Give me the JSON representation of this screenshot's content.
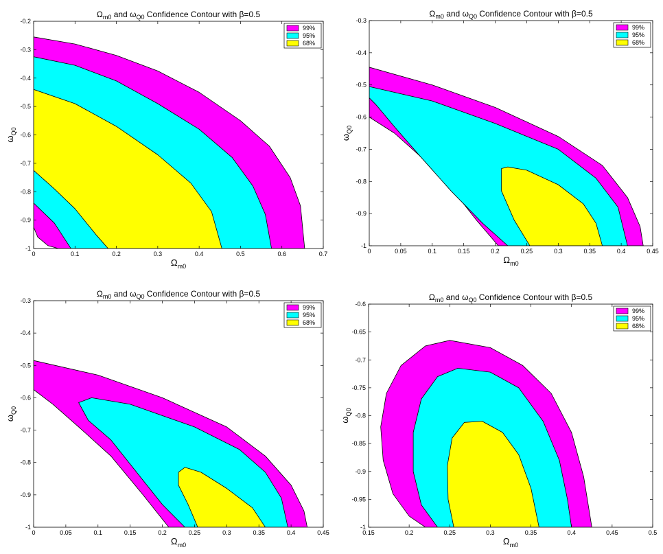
{
  "chart_data": [
    {
      "type": "contour",
      "title": "Ω_m0 and ω_Q0 Confidence Contour with β=0.5",
      "title_parts": {
        "a": "Ω",
        "a_sub": "m0",
        "b": " and ω",
        "b_sub": "Q0",
        "c": " Confidence Contour with β=0.5"
      },
      "xlabel": {
        "main": "Ω",
        "sub": "m0"
      },
      "ylabel": {
        "main": "ω",
        "sub": "Q0"
      },
      "xlim": [
        0,
        0.7
      ],
      "ylim": [
        -1,
        -0.2
      ],
      "xticks": [
        "0",
        "0.1",
        "0.2",
        "0.3",
        "0.4",
        "0.5",
        "0.6",
        "0.7"
      ],
      "yticks": [
        "-1",
        "-0.9",
        "-0.8",
        "-0.7",
        "-0.6",
        "-0.5",
        "-0.4",
        "-0.3",
        "-0.2"
      ],
      "legend": {
        "position": "top-right",
        "entries": [
          {
            "label": "99%",
            "color": "#ff00ff"
          },
          {
            "label": "95%",
            "color": "#00ffff"
          },
          {
            "label": "68%",
            "color": "#ffff00"
          }
        ]
      },
      "regions": [
        {
          "level": "99%",
          "color": "#ff00ff",
          "boundary": [
            [
              0,
              -0.255
            ],
            [
              0.1,
              -0.28
            ],
            [
              0.2,
              -0.32
            ],
            [
              0.3,
              -0.375
            ],
            [
              0.4,
              -0.45
            ],
            [
              0.5,
              -0.55
            ],
            [
              0.57,
              -0.64
            ],
            [
              0.62,
              -0.75
            ],
            [
              0.645,
              -0.85
            ],
            [
              0.655,
              -1
            ],
            [
              0,
              -1
            ]
          ]
        },
        {
          "level": "95%",
          "color": "#00ffff",
          "boundary": [
            [
              0,
              -0.325
            ],
            [
              0.1,
              -0.355
            ],
            [
              0.2,
              -0.41
            ],
            [
              0.3,
              -0.49
            ],
            [
              0.4,
              -0.58
            ],
            [
              0.48,
              -0.68
            ],
            [
              0.53,
              -0.78
            ],
            [
              0.56,
              -0.88
            ],
            [
              0.575,
              -1
            ],
            [
              0,
              -1
            ]
          ]
        },
        {
          "level": "68%",
          "color": "#ffff00",
          "boundary": [
            [
              0,
              -0.44
            ],
            [
              0.1,
              -0.49
            ],
            [
              0.2,
              -0.57
            ],
            [
              0.3,
              -0.67
            ],
            [
              0.38,
              -0.77
            ],
            [
              0.43,
              -0.87
            ],
            [
              0.455,
              -1
            ],
            [
              0,
              -1
            ]
          ]
        },
        {
          "level": "95%",
          "color": "#00ffff",
          "boundary": [
            [
              0,
              -0.725
            ],
            [
              0.05,
              -0.79
            ],
            [
              0.1,
              -0.86
            ],
            [
              0.15,
              -0.95
            ],
            [
              0.18,
              -1
            ],
            [
              0,
              -1
            ]
          ]
        },
        {
          "level": "99%",
          "color": "#ff00ff",
          "boundary": [
            [
              0,
              -0.84
            ],
            [
              0.05,
              -0.91
            ],
            [
              0.09,
              -1
            ],
            [
              0,
              -1
            ]
          ]
        },
        {
          "level": "",
          "color": "#ffffff",
          "boundary": [
            [
              0,
              -0.925
            ],
            [
              0.01,
              -0.96
            ],
            [
              0.035,
              -0.99
            ],
            [
              0.06,
              -1
            ],
            [
              0,
              -1
            ]
          ]
        }
      ]
    },
    {
      "type": "contour",
      "title": "Ω_m0 and ω_Q0 Confidence Contour with β=0.5",
      "title_parts": {
        "a": "Ω",
        "a_sub": "m0",
        "b": " and ω",
        "b_sub": "Q0",
        "c": " Confidence Contour with β=0.5"
      },
      "xlabel": {
        "main": "Ω",
        "sub": "m0"
      },
      "ylabel": {
        "main": "ω",
        "sub": "Q0"
      },
      "xlim": [
        0,
        0.45
      ],
      "ylim": [
        -1,
        -0.3
      ],
      "xticks": [
        "0",
        "0.05",
        "0.1",
        "0.15",
        "0.2",
        "0.25",
        "0.3",
        "0.35",
        "0.4",
        "0.45"
      ],
      "yticks": [
        "-1",
        "-0.9",
        "-0.8",
        "-0.7",
        "-0.6",
        "-0.5",
        "-0.4",
        "-0.3"
      ],
      "legend": {
        "position": "top-right",
        "entries": [
          {
            "label": "99%",
            "color": "#ff00ff"
          },
          {
            "label": "95%",
            "color": "#00ffff"
          },
          {
            "label": "68%",
            "color": "#ffff00"
          }
        ]
      },
      "regions": [
        {
          "level": "99%",
          "color": "#ff00ff",
          "boundary": [
            [
              0,
              -0.445
            ],
            [
              0.1,
              -0.5
            ],
            [
              0.2,
              -0.57
            ],
            [
              0.3,
              -0.66
            ],
            [
              0.37,
              -0.75
            ],
            [
              0.41,
              -0.85
            ],
            [
              0.43,
              -0.94
            ],
            [
              0.435,
              -1
            ],
            [
              0.205,
              -1
            ],
            [
              0.17,
              -0.92
            ],
            [
              0.13,
              -0.82
            ],
            [
              0.08,
              -0.72
            ],
            [
              0.04,
              -0.65
            ],
            [
              0,
              -0.6
            ]
          ]
        },
        {
          "level": "95%",
          "color": "#00ffff",
          "boundary": [
            [
              0,
              -0.505
            ],
            [
              0.1,
              -0.55
            ],
            [
              0.2,
              -0.62
            ],
            [
              0.3,
              -0.7
            ],
            [
              0.36,
              -0.79
            ],
            [
              0.395,
              -0.88
            ],
            [
              0.41,
              -1
            ],
            [
              0.22,
              -1
            ],
            [
              0.18,
              -0.93
            ],
            [
              0.13,
              -0.83
            ],
            [
              0.08,
              -0.72
            ],
            [
              0.04,
              -0.63
            ],
            [
              0.01,
              -0.56
            ],
            [
              0,
              -0.54
            ]
          ]
        },
        {
          "level": "68%",
          "color": "#ffff00",
          "boundary": [
            [
              0.21,
              -0.76
            ],
            [
              0.22,
              -0.755
            ],
            [
              0.25,
              -0.765
            ],
            [
              0.3,
              -0.81
            ],
            [
              0.34,
              -0.87
            ],
            [
              0.36,
              -0.93
            ],
            [
              0.37,
              -1
            ],
            [
              0.255,
              -1
            ],
            [
              0.23,
              -0.92
            ],
            [
              0.21,
              -0.83
            ]
          ]
        }
      ]
    },
    {
      "type": "contour",
      "title": "Ω_m0 and ω_Q0 Confidence Contour with β=0.5",
      "title_parts": {
        "a": "Ω",
        "a_sub": "m0",
        "b": " and ω",
        "b_sub": "Q0",
        "c": " Confidence Contour with β=0.5"
      },
      "xlabel": {
        "main": "Ω",
        "sub": "m0"
      },
      "ylabel": {
        "main": "ω",
        "sub": "Q0"
      },
      "xlim": [
        0,
        0.45
      ],
      "ylim": [
        -1,
        -0.3
      ],
      "xticks": [
        "0",
        "0.05",
        "0.1",
        "0.15",
        "0.2",
        "0.25",
        "0.3",
        "0.35",
        "0.4",
        "0.45"
      ],
      "yticks": [
        "-1",
        "-0.9",
        "-0.8",
        "-0.7",
        "-0.6",
        "-0.5",
        "-0.4",
        "-0.3"
      ],
      "legend": {
        "position": "top-right",
        "entries": [
          {
            "label": "99%",
            "color": "#ff00ff"
          },
          {
            "label": "95%",
            "color": "#00ffff"
          },
          {
            "label": "68%",
            "color": "#ffff00"
          }
        ]
      },
      "regions": [
        {
          "level": "99%",
          "color": "#ff00ff",
          "boundary": [
            [
              0,
              -0.485
            ],
            [
              0.1,
              -0.53
            ],
            [
              0.2,
              -0.6
            ],
            [
              0.3,
              -0.69
            ],
            [
              0.36,
              -0.78
            ],
            [
              0.4,
              -0.87
            ],
            [
              0.42,
              -0.95
            ],
            [
              0.425,
              -1
            ],
            [
              0.21,
              -1
            ],
            [
              0.17,
              -0.9
            ],
            [
              0.12,
              -0.78
            ],
            [
              0.07,
              -0.69
            ],
            [
              0.03,
              -0.62
            ],
            [
              0,
              -0.575
            ]
          ]
        },
        {
          "level": "95%",
          "color": "#00ffff",
          "boundary": [
            [
              0.07,
              -0.615
            ],
            [
              0.09,
              -0.6
            ],
            [
              0.15,
              -0.62
            ],
            [
              0.25,
              -0.69
            ],
            [
              0.32,
              -0.76
            ],
            [
              0.36,
              -0.83
            ],
            [
              0.385,
              -0.91
            ],
            [
              0.395,
              -1
            ],
            [
              0.235,
              -1
            ],
            [
              0.2,
              -0.93
            ],
            [
              0.16,
              -0.83
            ],
            [
              0.12,
              -0.73
            ],
            [
              0.085,
              -0.67
            ]
          ]
        },
        {
          "level": "68%",
          "color": "#ffff00",
          "boundary": [
            [
              0.225,
              -0.83
            ],
            [
              0.235,
              -0.815
            ],
            [
              0.26,
              -0.83
            ],
            [
              0.3,
              -0.88
            ],
            [
              0.34,
              -0.94
            ],
            [
              0.36,
              -1
            ],
            [
              0.255,
              -1
            ],
            [
              0.24,
              -0.93
            ],
            [
              0.225,
              -0.87
            ]
          ]
        }
      ]
    },
    {
      "type": "contour",
      "title": "Ω_m0 and ω_Q0 Confidence Contour with β=0.5",
      "title_parts": {
        "a": "Ω",
        "a_sub": "m0",
        "b": " and ω",
        "b_sub": "Q0",
        "c": " Confidence Contour with β=0.5"
      },
      "xlabel": {
        "main": "Ω",
        "sub": "m0"
      },
      "ylabel": {
        "main": "ω",
        "sub": "Q0"
      },
      "xlim": [
        0.15,
        0.5
      ],
      "ylim": [
        -1,
        -0.6
      ],
      "xticks": [
        "0.15",
        "0.2",
        "0.25",
        "0.3",
        "0.35",
        "0.4",
        "0.45",
        "0.5"
      ],
      "yticks": [
        "-1",
        "-0.95",
        "-0.9",
        "-0.85",
        "-0.8",
        "-0.75",
        "-0.7",
        "-0.65",
        "-0.6"
      ],
      "legend": {
        "position": "top-right",
        "entries": [
          {
            "label": "99%",
            "color": "#ff00ff"
          },
          {
            "label": "95%",
            "color": "#00ffff"
          },
          {
            "label": "68%",
            "color": "#ffff00"
          }
        ]
      },
      "regions": [
        {
          "level": "99%",
          "color": "#ff00ff",
          "boundary": [
            [
              0.22,
              -1
            ],
            [
              0.2,
              -0.98
            ],
            [
              0.18,
              -0.94
            ],
            [
              0.168,
              -0.88
            ],
            [
              0.165,
              -0.82
            ],
            [
              0.172,
              -0.76
            ],
            [
              0.19,
              -0.71
            ],
            [
              0.22,
              -0.675
            ],
            [
              0.25,
              -0.665
            ],
            [
              0.3,
              -0.678
            ],
            [
              0.34,
              -0.71
            ],
            [
              0.375,
              -0.76
            ],
            [
              0.4,
              -0.83
            ],
            [
              0.415,
              -0.91
            ],
            [
              0.425,
              -1
            ]
          ]
        },
        {
          "level": "95%",
          "color": "#00ffff",
          "boundary": [
            [
              0.235,
              -1
            ],
            [
              0.215,
              -0.96
            ],
            [
              0.205,
              -0.9
            ],
            [
              0.205,
              -0.83
            ],
            [
              0.215,
              -0.77
            ],
            [
              0.235,
              -0.73
            ],
            [
              0.26,
              -0.715
            ],
            [
              0.3,
              -0.722
            ],
            [
              0.335,
              -0.75
            ],
            [
              0.365,
              -0.81
            ],
            [
              0.385,
              -0.88
            ],
            [
              0.395,
              -0.95
            ],
            [
              0.4,
              -1
            ]
          ]
        },
        {
          "level": "68%",
          "color": "#ffff00",
          "boundary": [
            [
              0.255,
              -1
            ],
            [
              0.248,
              -0.95
            ],
            [
              0.247,
              -0.89
            ],
            [
              0.253,
              -0.84
            ],
            [
              0.268,
              -0.812
            ],
            [
              0.29,
              -0.81
            ],
            [
              0.315,
              -0.83
            ],
            [
              0.335,
              -0.87
            ],
            [
              0.35,
              -0.93
            ],
            [
              0.36,
              -1
            ]
          ]
        }
      ]
    }
  ]
}
